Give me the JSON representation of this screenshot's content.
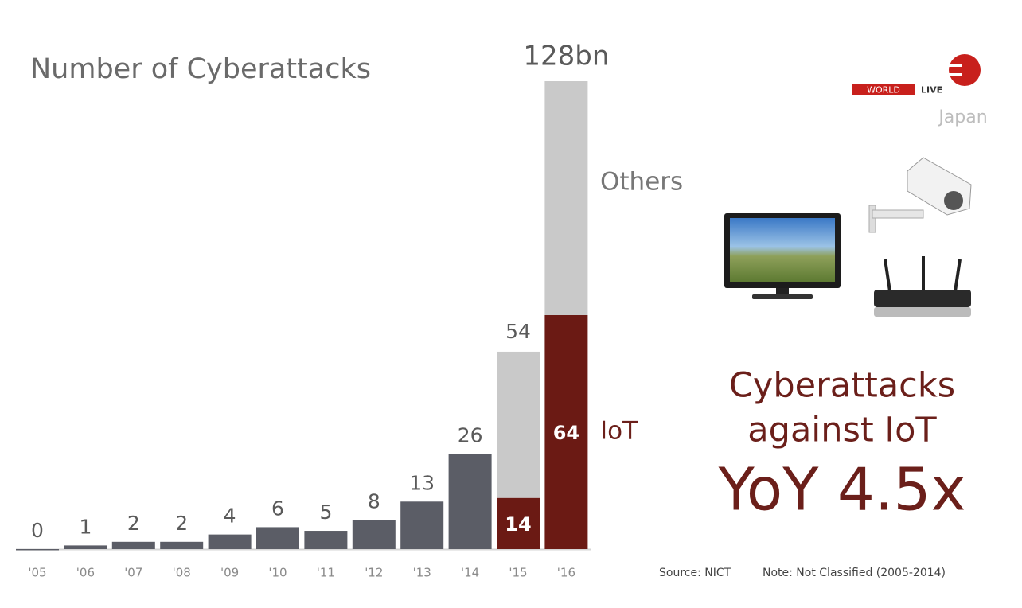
{
  "chart_data": {
    "type": "stacked_bar",
    "title": "Number of Cyberattacks",
    "categories": [
      "'05",
      "'06",
      "'07",
      "'08",
      "'09",
      "'10",
      "'11",
      "'12",
      "'13",
      "'14",
      "'15",
      "'16"
    ],
    "series": [
      {
        "color": "#5b5d66",
        "values": [
          0,
          1,
          2,
          2,
          4,
          6,
          5,
          8,
          13,
          26,
          null,
          null
        ]
      },
      {
        "name": "IoT",
        "color": "#6b1a14",
        "values": [
          null,
          null,
          null,
          null,
          null,
          null,
          null,
          null,
          null,
          null,
          14,
          64
        ]
      },
      {
        "name": "Others",
        "color": "#c9c9c9",
        "values": [
          null,
          null,
          null,
          null,
          null,
          null,
          null,
          null,
          null,
          null,
          40,
          64
        ]
      }
    ],
    "totals": {
      "values": [
        null,
        null,
        null,
        null,
        null,
        null,
        null,
        null,
        null,
        null,
        54,
        128
      ],
      "value_labels": [
        null,
        null,
        null,
        null,
        null,
        null,
        null,
        null,
        null,
        null,
        null,
        "128bn"
      ]
    },
    "logo": {
      "world": "WORLD",
      "live": "LIVE",
      "region": "Japan"
    },
    "headline": {
      "line1": "Cyberattacks",
      "line2": "against IoT",
      "line3": "YoY 4.5x"
    },
    "source": "Source: NICT",
    "note": "Note: Not Classified (2005-2014)"
  }
}
